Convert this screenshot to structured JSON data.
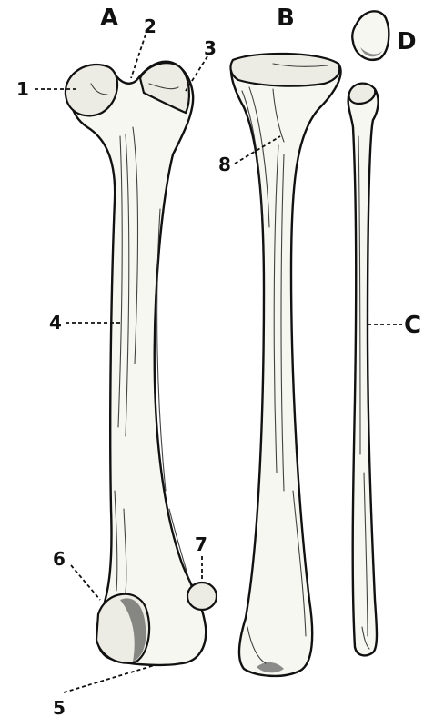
{
  "letters": {
    "a": "A",
    "b": "B",
    "c": "C",
    "d": "D"
  },
  "numbers": {
    "n1": "1",
    "n2": "2",
    "n3": "3",
    "n4": "4",
    "n5": "5",
    "n6": "6",
    "n7": "7",
    "n8": "8"
  }
}
